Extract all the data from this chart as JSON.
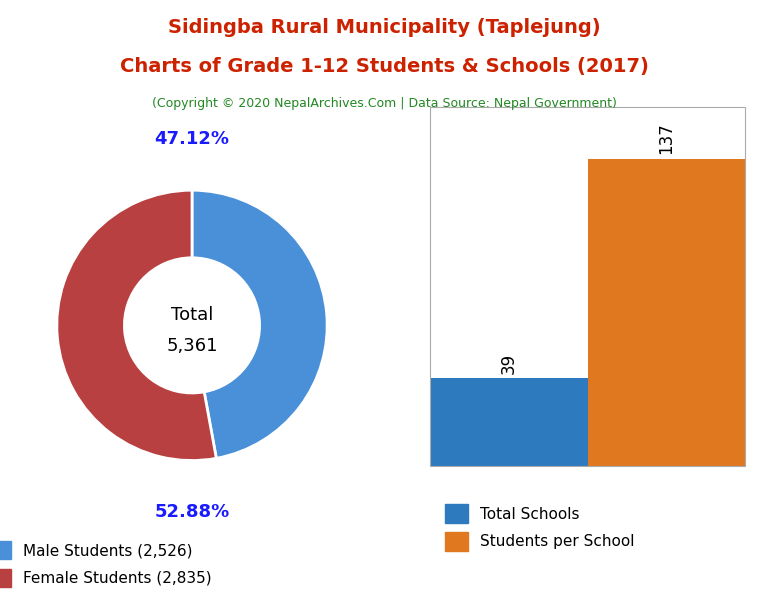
{
  "title_line1": "Sidingba Rural Municipality (Taplejung)",
  "title_line2": "Charts of Grade 1-12 Students & Schools (2017)",
  "subtitle": "(Copyright © 2020 NepalArchives.Com | Data Source: Nepal Government)",
  "title_color": "#cc2200",
  "subtitle_color": "#228822",
  "male_students": 2526,
  "female_students": 2835,
  "total_students": 5361,
  "male_pct": 47.12,
  "female_pct": 52.88,
  "male_color": "#4a90d9",
  "female_color": "#b94040",
  "total_schools": 39,
  "students_per_school": 137,
  "bar_color_schools": "#2d7abf",
  "bar_color_sps": "#e07820",
  "donut_label_color": "#1a1aff",
  "background_color": "#ffffff"
}
